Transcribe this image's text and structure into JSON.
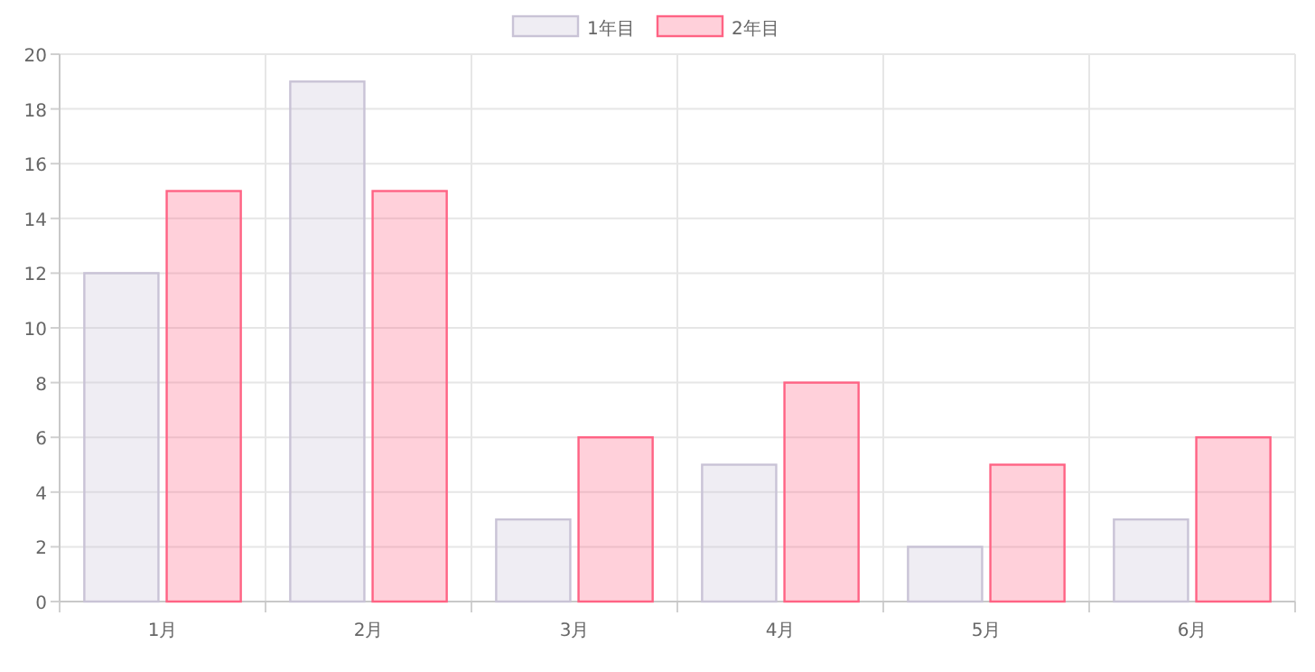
{
  "chart_data": {
    "type": "bar",
    "categories": [
      "1月",
      "2月",
      "3月",
      "4月",
      "5月",
      "6月"
    ],
    "series": [
      {
        "name": "1年目",
        "color": "#c9c3d6",
        "values": [
          12,
          19,
          3,
          5,
          2,
          3
        ]
      },
      {
        "name": "2年目",
        "color": "#ff6384",
        "values": [
          15,
          15,
          6,
          8,
          5,
          6
        ]
      }
    ],
    "ylim": [
      0,
      20
    ],
    "yticks": [
      0,
      2,
      4,
      6,
      8,
      10,
      12,
      14,
      16,
      18,
      20
    ],
    "grid": true,
    "legend": "top"
  }
}
